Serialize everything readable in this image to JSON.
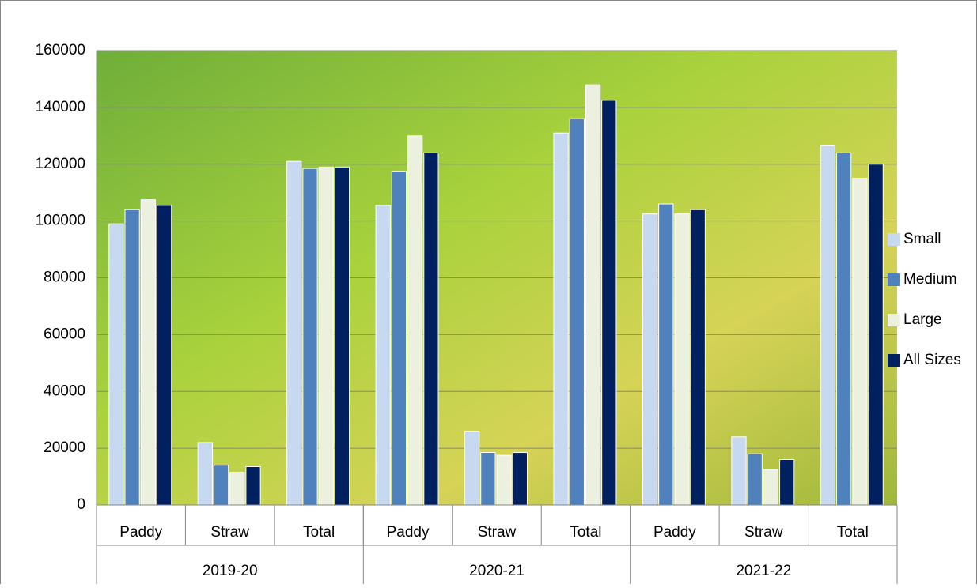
{
  "chart_data": {
    "type": "bar",
    "categories": [
      "Paddy",
      "Straw",
      "Total",
      "Paddy",
      "Straw",
      "Total",
      "Paddy",
      "Straw",
      "Total"
    ],
    "groups": [
      "2019-20",
      "2020-21",
      "2021-22"
    ],
    "series": [
      {
        "name": "Small",
        "color": "#c6d9f1",
        "values": [
          99000,
          22000,
          121000,
          105500,
          26000,
          131000,
          102500,
          24000,
          126500
        ]
      },
      {
        "name": "Medium",
        "color": "#4f81bd",
        "values": [
          104000,
          14000,
          118500,
          117500,
          18500,
          136000,
          106000,
          18000,
          124000
        ]
      },
      {
        "name": "Large",
        "color": "#ebf1de",
        "values": [
          107500,
          11500,
          119000,
          130000,
          17500,
          148000,
          102500,
          12500,
          115000
        ]
      },
      {
        "name": "All Sizes",
        "color": "#002060",
        "values": [
          105500,
          13500,
          119000,
          124000,
          18500,
          142500,
          104000,
          16000,
          120000
        ]
      }
    ],
    "ylim": [
      0,
      160000
    ],
    "yticks": [
      0,
      20000,
      40000,
      60000,
      80000,
      100000,
      120000,
      140000,
      160000
    ],
    "grid": true,
    "legend": "right"
  }
}
